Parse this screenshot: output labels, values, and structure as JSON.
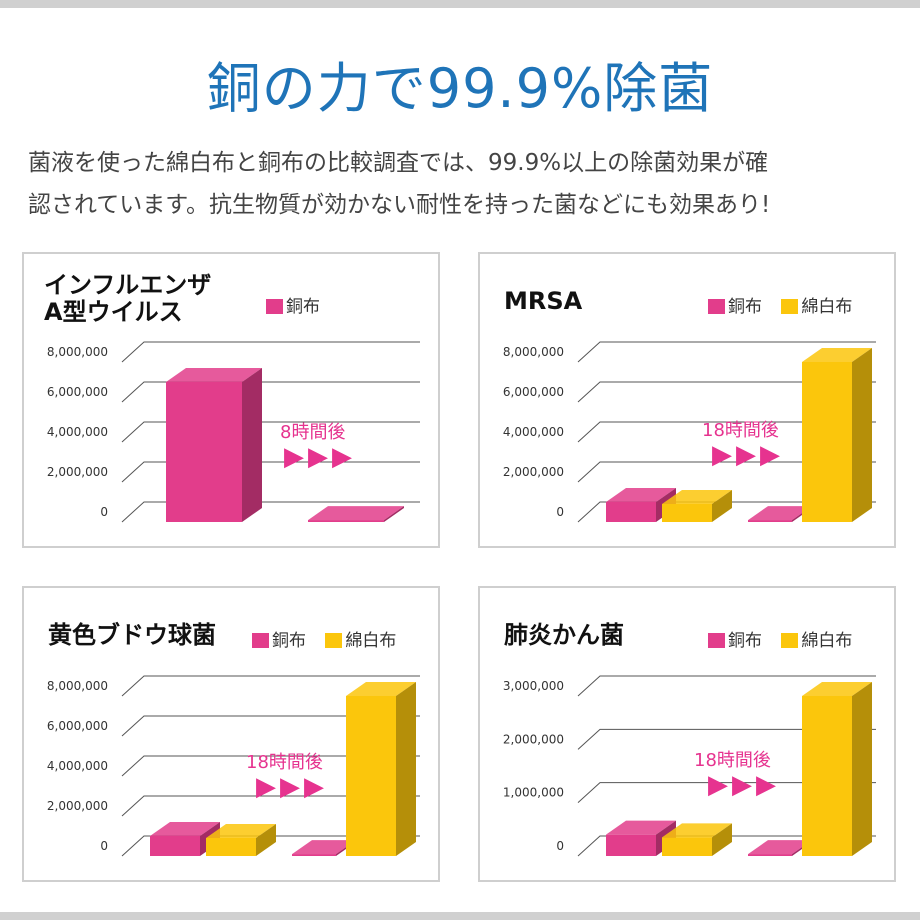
{
  "header": {
    "title": "銅の力で99.9%除菌",
    "subtitle_line1": "菌液を使った綿白布と銅布の比較調査では、99.9%以上の除菌効果が確",
    "subtitle_line2": "認されています。抗生物質が効かない耐性を持った菌などにも効果あり!"
  },
  "colors": {
    "copper_cloth": "#e23d8b",
    "cotton_cloth": "#fbc60c",
    "title_blue": "#1f74b8",
    "accent_pink": "#e6338f"
  },
  "chart_data": [
    {
      "type": "bar",
      "title_line1": "インフルエンザ",
      "title_line2": "A型ウイルス",
      "legend": [
        "銅布"
      ],
      "annotation": "8時間後",
      "arrows": "▶▶▶",
      "yticks": [
        "8,000,000",
        "6,000,000",
        "4,000,000",
        "2,000,000",
        "0"
      ],
      "ylim": [
        0,
        8000000
      ],
      "series": [
        {
          "name": "銅布",
          "color": "#e23d8b",
          "values": [
            7000000,
            0
          ]
        }
      ],
      "categories": [
        "",
        "8時間後"
      ]
    },
    {
      "type": "bar",
      "title_line1": "MRSA",
      "title_line2": "",
      "legend": [
        "銅布",
        "綿白布"
      ],
      "annotation": "18時間後",
      "arrows": "▶▶▶",
      "yticks": [
        "8,000,000",
        "6,000,000",
        "4,000,000",
        "2,000,000",
        "0"
      ],
      "ylim": [
        0,
        8000000
      ],
      "series": [
        {
          "name": "銅布",
          "color": "#e23d8b",
          "values": [
            1000000,
            0
          ]
        },
        {
          "name": "綿白布",
          "color": "#fbc60c",
          "values": [
            900000,
            8000000
          ]
        }
      ],
      "categories": [
        "",
        "18時間後"
      ]
    },
    {
      "type": "bar",
      "title_line1": "黄色ブドウ球菌",
      "title_line2": "",
      "legend": [
        "銅布",
        "綿白布"
      ],
      "annotation": "18時間後",
      "arrows": "▶▶▶",
      "yticks": [
        "8,000,000",
        "6,000,000",
        "4,000,000",
        "2,000,000",
        "0"
      ],
      "ylim": [
        0,
        8000000
      ],
      "series": [
        {
          "name": "銅布",
          "color": "#e23d8b",
          "values": [
            1000000,
            0
          ]
        },
        {
          "name": "綿白布",
          "color": "#fbc60c",
          "values": [
            900000,
            8000000
          ]
        }
      ],
      "categories": [
        "",
        "18時間後"
      ]
    },
    {
      "type": "bar",
      "title_line1": "肺炎かん菌",
      "title_line2": "",
      "legend": [
        "銅布",
        "綿白布"
      ],
      "annotation": "18時間後",
      "arrows": "▶▶▶",
      "yticks": [
        "3,000,000",
        "2,000,000",
        "1,000,000",
        "0"
      ],
      "ylim": [
        0,
        3000000
      ],
      "series": [
        {
          "name": "銅布",
          "color": "#e23d8b",
          "values": [
            400000,
            0
          ]
        },
        {
          "name": "綿白布",
          "color": "#fbc60c",
          "values": [
            350000,
            3000000
          ]
        }
      ],
      "categories": [
        "",
        "18時間後"
      ]
    }
  ]
}
